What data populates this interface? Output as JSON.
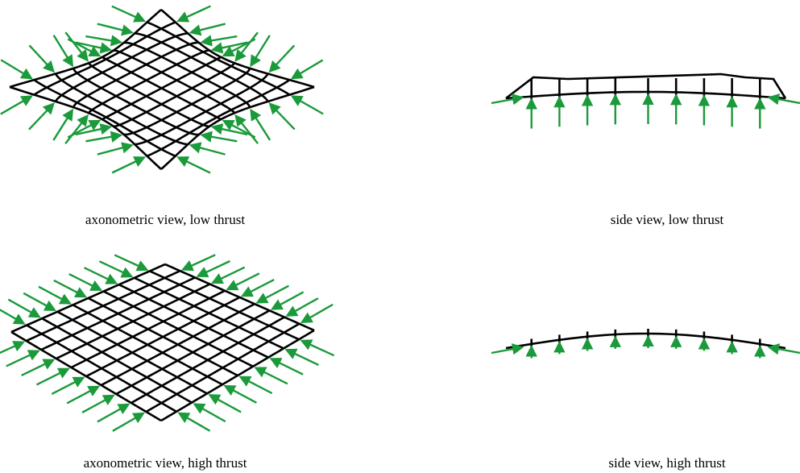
{
  "panels": [
    {
      "caption": "axonometric view, low thrust"
    },
    {
      "caption": "side view, low thrust"
    },
    {
      "caption": "axonometric view, high thrust"
    },
    {
      "caption": "side view, high thrust"
    }
  ]
}
